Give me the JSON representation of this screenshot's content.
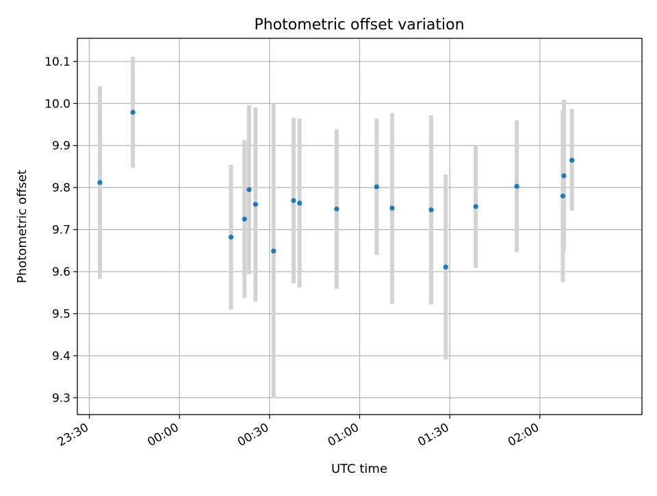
{
  "chart_data": {
    "type": "scatter",
    "title": "Photometric offset variation",
    "xlabel": "UTC time",
    "ylabel": "Photometric offset",
    "xlim": [
      "23:26",
      "02:34"
    ],
    "ylim": [
      9.26,
      10.155
    ],
    "x_ticks": [
      "23:30",
      "00:00",
      "00:30",
      "01:00",
      "01:30",
      "02:00"
    ],
    "y_ticks": [
      "9.3",
      "9.4",
      "9.5",
      "9.6",
      "9.7",
      "9.8",
      "9.9",
      "10.0",
      "10.1"
    ],
    "grid": true,
    "colors": {
      "points": "#1f77b4",
      "errorbars": "#d3d3d3",
      "grid": "#b0b0b0"
    },
    "series": [
      {
        "points": [
          {
            "x": "23:33:30",
            "y": 9.812,
            "ymin": 9.583,
            "ymax": 10.041
          },
          {
            "x": "23:44:30",
            "y": 9.979,
            "ymin": 9.847,
            "ymax": 10.111
          },
          {
            "x": "00:17:10",
            "y": 9.682,
            "ymin": 9.51,
            "ymax": 9.854
          },
          {
            "x": "00:21:40",
            "y": 9.725,
            "ymin": 9.537,
            "ymax": 9.913
          },
          {
            "x": "00:23:10",
            "y": 9.795,
            "ymin": 9.594,
            "ymax": 9.996
          },
          {
            "x": "00:25:20",
            "y": 9.76,
            "ymin": 9.529,
            "ymax": 9.991
          },
          {
            "x": "00:31:20",
            "y": 9.649,
            "ymin": 9.299,
            "ymax": 9.999
          },
          {
            "x": "00:38:00",
            "y": 9.769,
            "ymin": 9.572,
            "ymax": 9.966
          },
          {
            "x": "00:40:00",
            "y": 9.763,
            "ymin": 9.562,
            "ymax": 9.964
          },
          {
            "x": "00:52:20",
            "y": 9.749,
            "ymin": 9.559,
            "ymax": 9.939
          },
          {
            "x": "01:05:40",
            "y": 9.802,
            "ymin": 9.64,
            "ymax": 9.964
          },
          {
            "x": "01:10:50",
            "y": 9.751,
            "ymin": 9.524,
            "ymax": 9.977
          },
          {
            "x": "01:23:50",
            "y": 9.747,
            "ymin": 9.522,
            "ymax": 9.972
          },
          {
            "x": "01:28:40",
            "y": 9.611,
            "ymin": 9.391,
            "ymax": 9.831
          },
          {
            "x": "01:38:40",
            "y": 9.755,
            "ymin": 9.609,
            "ymax": 9.901
          },
          {
            "x": "01:52:20",
            "y": 9.803,
            "ymin": 9.646,
            "ymax": 9.96
          },
          {
            "x": "02:07:40",
            "y": 9.78,
            "ymin": 9.575,
            "ymax": 9.985
          },
          {
            "x": "02:08:00",
            "y": 9.828,
            "ymin": 9.647,
            "ymax": 10.009
          },
          {
            "x": "02:10:40",
            "y": 9.865,
            "ymin": 9.745,
            "ymax": 9.987
          }
        ]
      }
    ]
  }
}
